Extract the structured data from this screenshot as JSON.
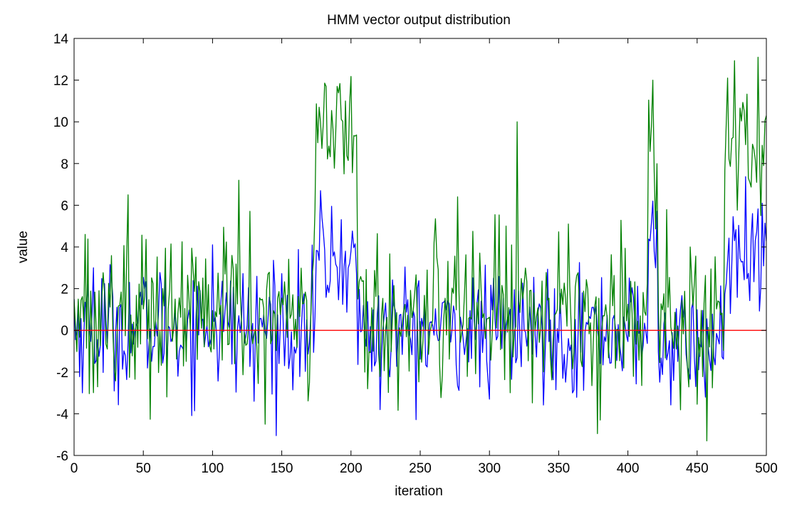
{
  "chart_data": {
    "type": "line",
    "title": "HMM vector output distribution",
    "xlabel": "iteration",
    "ylabel": "value",
    "xlim": [
      0,
      500
    ],
    "ylim": [
      -6,
      14
    ],
    "xticks": [
      0,
      50,
      100,
      150,
      200,
      250,
      300,
      350,
      400,
      450,
      500
    ],
    "yticks": [
      -6,
      -4,
      -2,
      0,
      2,
      4,
      6,
      8,
      10,
      12,
      14
    ],
    "grid": false,
    "legend": "none",
    "series": [
      {
        "color": "#0000ff",
        "regimes": [
          [
            0,
            175,
            0.2,
            1.5
          ],
          [
            175,
            205,
            3.3,
            1.3
          ],
          [
            205,
            415,
            0.0,
            1.4
          ],
          [
            415,
            422,
            3.5,
            1.4
          ],
          [
            422,
            470,
            -0.6,
            1.3
          ],
          [
            470,
            500,
            3.2,
            1.4
          ]
        ],
        "sample_points": [
          [
            0,
            1.5
          ],
          [
            14,
            3.0
          ],
          [
            40,
            2.3
          ],
          [
            75,
            -2.2
          ],
          [
            100,
            4.1
          ],
          [
            130,
            -3.4
          ],
          [
            178,
            6.7
          ],
          [
            200,
            3.8
          ],
          [
            221,
            -3.8
          ],
          [
            300,
            -3.3
          ],
          [
            360,
            -3.0
          ],
          [
            418,
            6.2
          ],
          [
            456,
            -3.2
          ],
          [
            490,
            5.6
          ],
          [
            497,
            6.1
          ]
        ]
      },
      {
        "color": "#008000",
        "regimes": [
          [
            0,
            175,
            0.8,
            1.9
          ],
          [
            175,
            205,
            9.6,
            1.2
          ],
          [
            205,
            415,
            0.9,
            1.9
          ],
          [
            415,
            422,
            8.0,
            2.5
          ],
          [
            422,
            470,
            0.6,
            1.9
          ],
          [
            470,
            500,
            8.5,
            1.8
          ]
        ],
        "sample_points": [
          [
            0,
            1.5
          ],
          [
            8,
            4.6
          ],
          [
            39,
            6.5
          ],
          [
            119,
            7.2
          ],
          [
            138,
            -4.5
          ],
          [
            182,
            11.7
          ],
          [
            190,
            11.7
          ],
          [
            212,
            -2.8
          ],
          [
            260,
            4.2
          ],
          [
            277,
            6.4
          ],
          [
            312,
            5.0
          ],
          [
            320,
            10.0
          ],
          [
            380,
            -4.3
          ],
          [
            418,
            12.0
          ],
          [
            445,
            4.0
          ],
          [
            457,
            -5.3
          ],
          [
            472,
            12.1
          ],
          [
            494,
            13.1
          ],
          [
            500,
            10.3
          ]
        ]
      },
      {
        "color": "#ff0000",
        "constant": 0
      }
    ]
  }
}
